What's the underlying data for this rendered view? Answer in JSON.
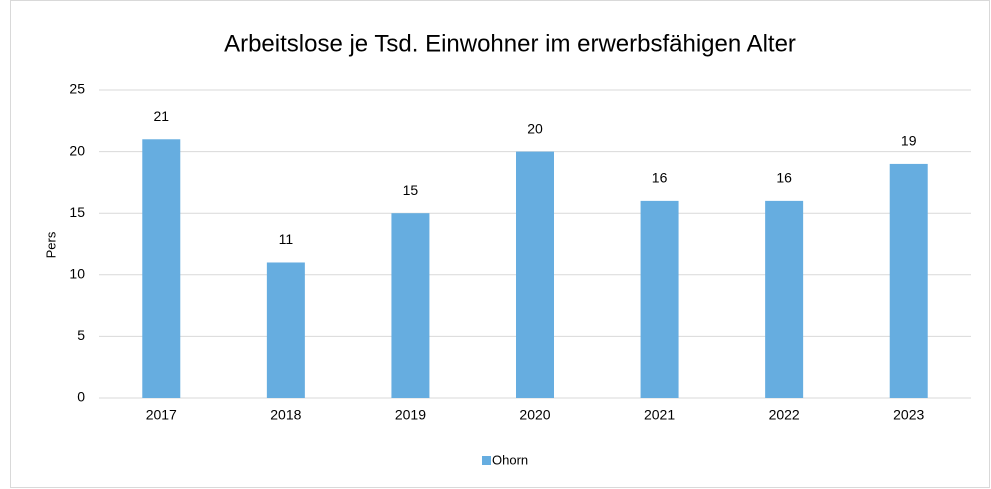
{
  "chart_data": {
    "type": "bar",
    "title": "Arbeitslose je Tsd. Einwohner im erwerbsfähigen Alter",
    "y_label": "Pers",
    "categories": [
      "2017",
      "2018",
      "2019",
      "2020",
      "2021",
      "2022",
      "2023"
    ],
    "series": [
      {
        "name": "Ohorn",
        "color": "#66ade0",
        "values": [
          21,
          11,
          15,
          20,
          16,
          16,
          19
        ]
      }
    ],
    "ylim": [
      0,
      25
    ],
    "yticks": [
      0,
      5,
      10,
      15,
      20,
      25
    ],
    "grid": true,
    "legend": "bottom"
  }
}
